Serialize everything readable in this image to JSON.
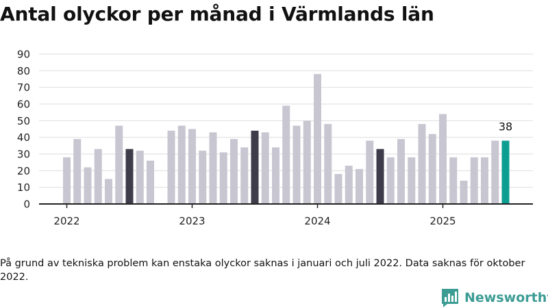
{
  "title": "Antal olyckor per månad i Värmlands län",
  "footnote": "På grund av tekniska problem kan enstaka olyckor saknas i januari och juli 2022. Data saknas för oktober 2022.",
  "brand": {
    "name": "Newsworthy",
    "icon": "bar-chart-speech-bubble-icon",
    "color": "#3b9c94"
  },
  "colors": {
    "regular": "#c8c6d1",
    "july": "#3e3c4b",
    "latest": "#0d9e92",
    "grid": "#dedede",
    "axis": "#222222"
  },
  "chart_data": {
    "type": "bar",
    "title": "Antal olyckor per månad i Värmlands län",
    "xlabel": "",
    "ylabel": "",
    "ylim": [
      0,
      90
    ],
    "yticks": [
      0,
      10,
      20,
      30,
      40,
      50,
      60,
      70,
      80,
      90
    ],
    "xtick_labels": [
      "2022",
      "2023",
      "2024",
      "2025"
    ],
    "grid": "horizontal",
    "highlight_note": "Juli bars dark, latest month teal with value label",
    "latest_label": "38",
    "months": [
      "2022-01",
      "2022-02",
      "2022-03",
      "2022-04",
      "2022-05",
      "2022-06",
      "2022-07",
      "2022-08",
      "2022-09",
      "2022-10",
      "2022-11",
      "2022-12",
      "2023-01",
      "2023-02",
      "2023-03",
      "2023-04",
      "2023-05",
      "2023-06",
      "2023-07",
      "2023-08",
      "2023-09",
      "2023-10",
      "2023-11",
      "2023-12",
      "2024-01",
      "2024-02",
      "2024-03",
      "2024-04",
      "2024-05",
      "2024-06",
      "2024-07",
      "2024-08",
      "2024-09",
      "2024-10",
      "2024-11",
      "2024-12",
      "2025-01",
      "2025-02",
      "2025-03",
      "2025-04",
      "2025-05",
      "2025-06",
      "2025-07"
    ],
    "values": [
      28,
      39,
      22,
      33,
      15,
      47,
      33,
      32,
      26,
      null,
      44,
      47,
      45,
      32,
      43,
      31,
      39,
      34,
      44,
      43,
      34,
      59,
      47,
      50,
      78,
      48,
      18,
      23,
      21,
      38,
      33,
      28,
      39,
      28,
      48,
      42,
      54,
      28,
      14,
      28,
      28,
      38,
      38
    ]
  }
}
